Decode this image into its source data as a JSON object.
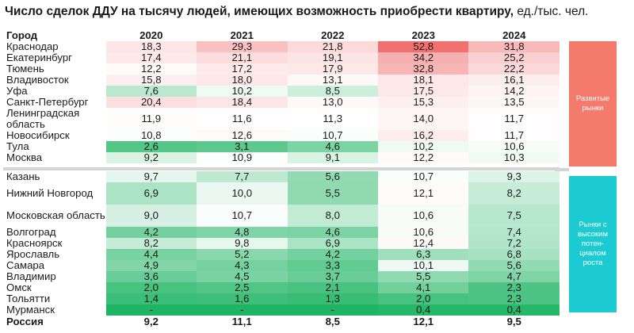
{
  "title": {
    "bold": "Число сделок ДДУ на тысячу людей, имеющих возможность приобрести квартиру,",
    "unit": " ед./тыс. чел."
  },
  "header": {
    "city": "Город",
    "years": [
      "2020",
      "2021",
      "2022",
      "2023",
      "2024"
    ]
  },
  "developed_label": "Развитые\nрынки",
  "potential_label": "Рынки с\nвысоким\nпотен-\nциалом\nроста",
  "developed": [
    {
      "city": "Краснодар",
      "values": [
        "18,3",
        "29,3",
        "21,8",
        "52,8",
        "31,8"
      ]
    },
    {
      "city": "Екатеринбург",
      "values": [
        "17,4",
        "21,1",
        "19,1",
        "34,2",
        "25,2"
      ]
    },
    {
      "city": "Тюмень",
      "values": [
        "12,2",
        "17,2",
        "17,9",
        "32,8",
        "22,2"
      ]
    },
    {
      "city": "Владивосток",
      "values": [
        "15,8",
        "18,0",
        "13,1",
        "18,1",
        "16,1"
      ]
    },
    {
      "city": "Уфа",
      "values": [
        "7,6",
        "10,2",
        "8,5",
        "17,5",
        "14,2"
      ]
    },
    {
      "city": "Санкт-Петербург",
      "values": [
        "20,4",
        "18,4",
        "13,0",
        "15,3",
        "13,5"
      ]
    },
    {
      "city": "Ленинградская область",
      "values": [
        "11,9",
        "11,6",
        "11,3",
        "14,0",
        "11,7"
      ]
    },
    {
      "city": "Новосибирск",
      "values": [
        "10,8",
        "12,6",
        "10,7",
        "16,2",
        "11,7"
      ]
    },
    {
      "city": "Тула",
      "values": [
        "2,6",
        "3,1",
        "4,6",
        "10,2",
        "10,6"
      ]
    },
    {
      "city": "Москва",
      "values": [
        "9,2",
        "10,9",
        "9,1",
        "12,2",
        "10,3"
      ]
    }
  ],
  "potential": [
    {
      "city": "Казань",
      "values": [
        "9,7",
        "7,7",
        "5,6",
        "10,7",
        "9,3"
      ]
    },
    {
      "city": "Нижний Новгород",
      "values": [
        "6,9",
        "10,0",
        "5,5",
        "12,1",
        "8,2"
      ]
    },
    {
      "city": "Московская область",
      "values": [
        "9,0",
        "10,7",
        "8,0",
        "10,6",
        "7,5"
      ]
    },
    {
      "city": "Волгоград",
      "values": [
        "4,2",
        "4,8",
        "4,6",
        "10,6",
        "7,4"
      ]
    },
    {
      "city": "Красноярск",
      "values": [
        "8,2",
        "9,8",
        "6,9",
        "12,4",
        "7,2"
      ]
    },
    {
      "city": "Ярославль",
      "values": [
        "4,4",
        "5,2",
        "4,2",
        "6,3",
        "6,8"
      ]
    },
    {
      "city": "Самара",
      "values": [
        "4,9",
        "4,3",
        "3,3",
        "10,1",
        "5,6"
      ]
    },
    {
      "city": "Владимир",
      "values": [
        "3,6",
        "4,5",
        "3,7",
        "5,5",
        "4,7"
      ]
    },
    {
      "city": "Омск",
      "values": [
        "2,0",
        "2,5",
        "2,1",
        "4,1",
        "2,3"
      ]
    },
    {
      "city": "Тольятти",
      "values": [
        "1,4",
        "1,6",
        "1,3",
        "2,0",
        "2,3"
      ]
    },
    {
      "city": "Мурманск",
      "values": [
        "-",
        "-",
        "-",
        "0,4",
        "0,4"
      ]
    }
  ],
  "total": {
    "city": "Россия",
    "values": [
      "9,2",
      "11,1",
      "8,5",
      "12,1",
      "9,5"
    ]
  },
  "colors": {
    "high": "#f06a6a",
    "mid": "#ffffff",
    "low": "#1eb463",
    "developed_box": "#f47a6c",
    "potential_box": "#1ccbd2",
    "separator": "#d4d4d4"
  }
}
